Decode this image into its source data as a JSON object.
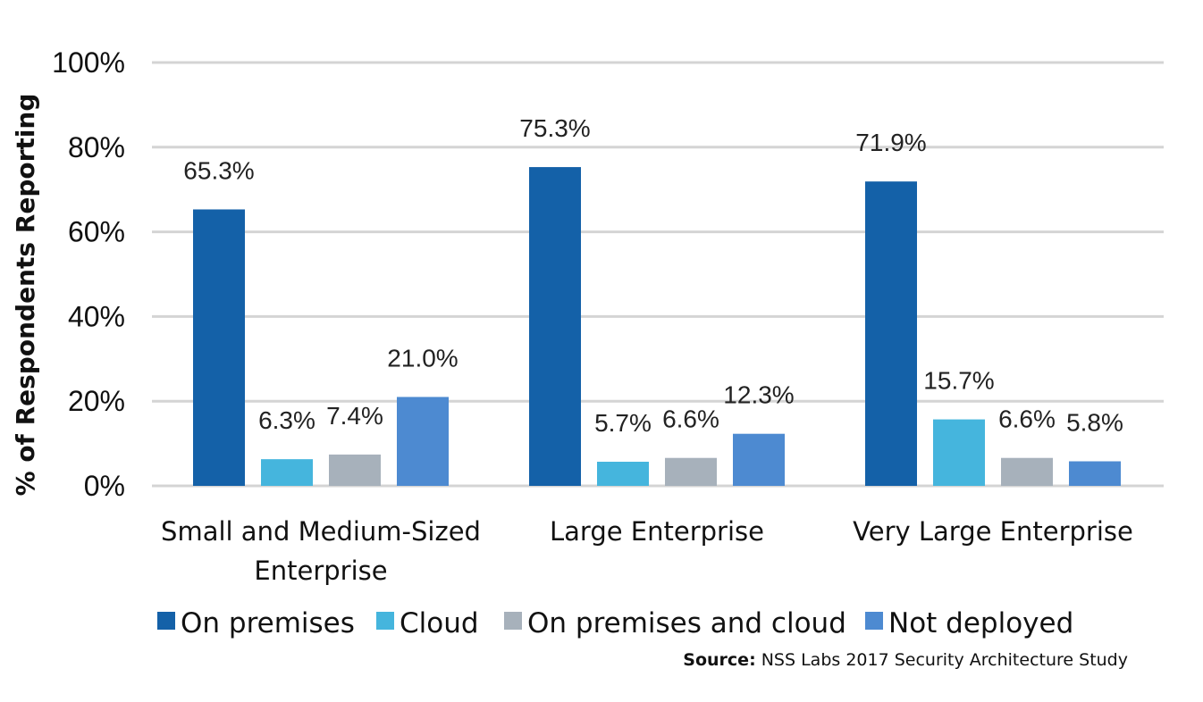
{
  "chart_data": {
    "type": "bar",
    "title": "",
    "xlabel": "",
    "ylabel": "% of Respondents Reporting",
    "ylim": [
      0,
      100
    ],
    "yticks": [
      "0%",
      "20%",
      "40%",
      "60%",
      "80%",
      "100%"
    ],
    "ytick_values": [
      0,
      20,
      40,
      60,
      80,
      100
    ],
    "grid": true,
    "legend_position": "bottom",
    "categories": [
      [
        "Small and Medium-Sized",
        "Enterprise"
      ],
      [
        "Large Enterprise"
      ],
      [
        "Very Large Enterprise"
      ]
    ],
    "series": [
      {
        "name": "On premises",
        "color": "#1461a8",
        "values": [
          65.3,
          75.3,
          71.9
        ],
        "labels": [
          "65.3%",
          "75.3%",
          "71.9%"
        ]
      },
      {
        "name": "Cloud",
        "color": "#45b5dd",
        "values": [
          6.3,
          5.7,
          15.7
        ],
        "labels": [
          "6.3%",
          "5.7%",
          "15.7%"
        ]
      },
      {
        "name": "On premises and cloud",
        "color": "#a7b1bb",
        "values": [
          7.4,
          6.6,
          6.6
        ],
        "labels": [
          "7.4%",
          "6.6%",
          "6.6%"
        ]
      },
      {
        "name": "Not deployed",
        "color": "#4d8ad1",
        "values": [
          21.0,
          12.3,
          5.8
        ],
        "labels": [
          "21.0%",
          "12.3%",
          "5.8%"
        ]
      }
    ]
  },
  "source": {
    "label": "Source:",
    "text": "NSS Labs 2017 Security Architecture Study"
  },
  "colors": {
    "grid": "#d4d4d4",
    "text": "#111111"
  }
}
